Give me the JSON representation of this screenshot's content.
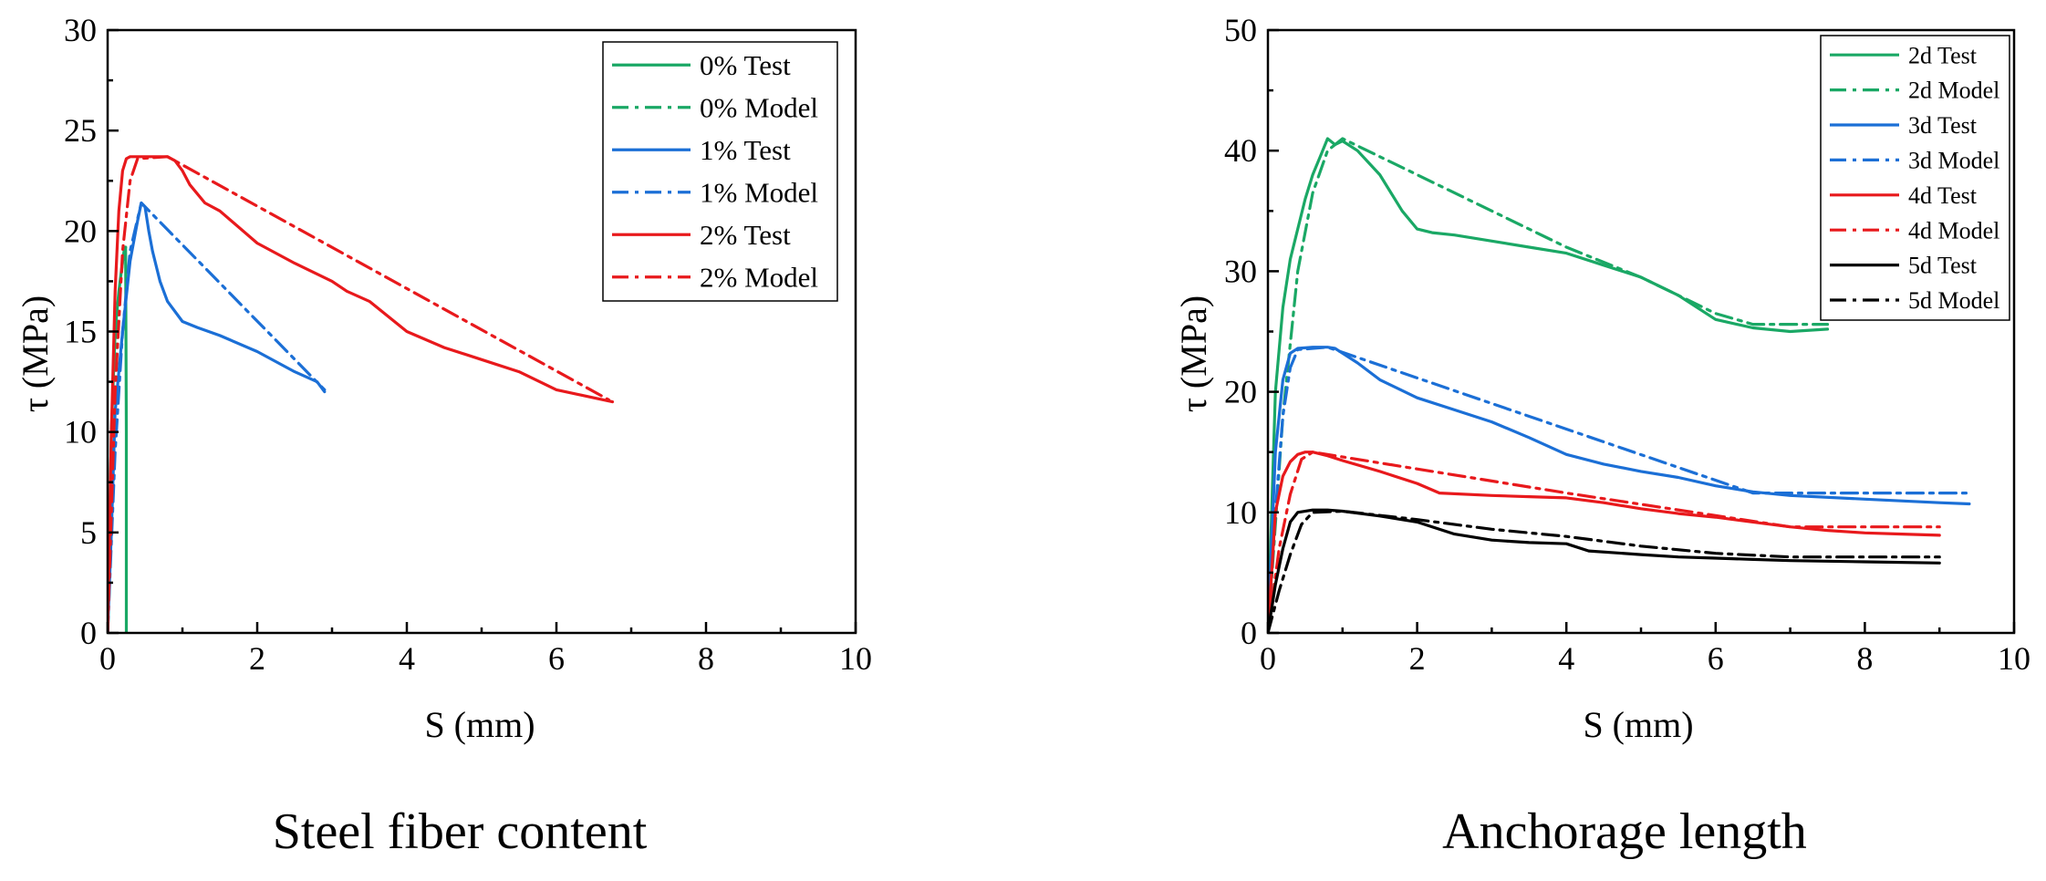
{
  "chart_data": [
    {
      "type": "line",
      "title": "Steel fiber content",
      "xlabel": "S (mm)",
      "ylabel": "τ (MPa)",
      "xlim": [
        0,
        10
      ],
      "ylim": [
        0,
        30
      ],
      "xticks": [
        0,
        2,
        4,
        6,
        8,
        10
      ],
      "yticks": [
        0,
        5,
        10,
        15,
        20,
        25,
        30
      ],
      "legend_position": "top-right",
      "series": [
        {
          "name": "0% Test",
          "color": "#1aa865",
          "style": "solid",
          "x": [
            0,
            0.05,
            0.1,
            0.15,
            0.2,
            0.22,
            0.24,
            0.25,
            0.25
          ],
          "y": [
            0,
            10,
            15,
            17,
            18.5,
            19,
            19.2,
            10,
            0
          ]
        },
        {
          "name": "0% Model",
          "color": "#1aa865",
          "style": "dashdot",
          "x": [
            0,
            0.05,
            0.1,
            0.15,
            0.2,
            0.24
          ],
          "y": [
            0,
            8,
            13,
            16.5,
            18.5,
            19.2
          ]
        },
        {
          "name": "1% Test",
          "color": "#1b6fd6",
          "style": "solid",
          "x": [
            0,
            0.05,
            0.1,
            0.2,
            0.3,
            0.4,
            0.45,
            0.5,
            0.55,
            0.6,
            0.7,
            0.8,
            1.0,
            1.2,
            1.5,
            2.0,
            2.5,
            2.8,
            2.9
          ],
          "y": [
            0,
            5,
            11,
            15,
            18.5,
            20.5,
            21.4,
            21.2,
            20,
            19,
            17.5,
            16.5,
            15.5,
            15.2,
            14.8,
            14,
            13,
            12.5,
            12
          ]
        },
        {
          "name": "1% Model",
          "color": "#1b6fd6",
          "style": "dashdot",
          "x": [
            0,
            0.1,
            0.2,
            0.3,
            0.45,
            2.9
          ],
          "y": [
            0,
            9,
            15,
            19,
            21.4,
            12.1
          ]
        },
        {
          "name": "2% Test",
          "color": "#e8191c",
          "style": "solid",
          "x": [
            0,
            0.05,
            0.1,
            0.15,
            0.2,
            0.25,
            0.3,
            0.4,
            0.6,
            0.8,
            0.9,
            1.0,
            1.1,
            1.3,
            1.5,
            2.0,
            2.5,
            3.0,
            3.2,
            3.5,
            4.0,
            4.5,
            5.0,
            5.5,
            6.0,
            6.5,
            6.75
          ],
          "y": [
            0,
            10,
            17,
            21,
            23,
            23.6,
            23.7,
            23.7,
            23.7,
            23.7,
            23.5,
            23,
            22.3,
            21.4,
            21,
            19.4,
            18.4,
            17.5,
            17,
            16.5,
            15,
            14.2,
            13.6,
            13,
            12.1,
            11.7,
            11.5
          ]
        },
        {
          "name": "2% Model",
          "color": "#e8191c",
          "style": "dashdot",
          "x": [
            0,
            0.1,
            0.2,
            0.3,
            0.4,
            0.8,
            6.7
          ],
          "y": [
            0,
            12,
            19,
            22.5,
            23.6,
            23.7,
            11.6
          ]
        }
      ]
    },
    {
      "type": "line",
      "title": "Anchorage length",
      "xlabel": "S (mm)",
      "ylabel": "τ (MPa)",
      "xlim": [
        0,
        10
      ],
      "ylim": [
        0,
        50
      ],
      "xticks": [
        0,
        2,
        4,
        6,
        8,
        10
      ],
      "yticks": [
        0,
        10,
        20,
        30,
        40,
        50
      ],
      "legend_position": "top-right",
      "series": [
        {
          "name": "2d Test",
          "color": "#1aa865",
          "style": "solid",
          "x": [
            0,
            0.1,
            0.2,
            0.3,
            0.4,
            0.5,
            0.6,
            0.7,
            0.8,
            0.9,
            1.0,
            1.2,
            1.5,
            1.8,
            2.0,
            2.2,
            2.5,
            3.0,
            3.5,
            4.0,
            4.5,
            5.0,
            5.5,
            6.0,
            6.5,
            7.0,
            7.5
          ],
          "y": [
            0,
            20,
            27,
            31,
            33.5,
            36,
            38,
            39.5,
            41,
            40.5,
            40.8,
            40,
            38,
            35,
            33.5,
            33.2,
            33,
            32.5,
            32,
            31.5,
            30.5,
            29.5,
            28,
            26,
            25.3,
            25,
            25.2
          ]
        },
        {
          "name": "2d Model",
          "color": "#1aa865",
          "style": "dashdot",
          "x": [
            0,
            0.2,
            0.4,
            0.6,
            0.8,
            1.0,
            2.0,
            3.0,
            4.0,
            5.0,
            6.0,
            6.5,
            7.5
          ],
          "y": [
            0,
            18,
            30,
            36.5,
            40,
            41,
            38,
            35,
            32,
            29.5,
            26.5,
            25.6,
            25.6
          ]
        },
        {
          "name": "3d Test",
          "color": "#1b6fd6",
          "style": "solid",
          "x": [
            0,
            0.1,
            0.2,
            0.3,
            0.4,
            0.6,
            0.8,
            0.9,
            1.0,
            1.2,
            1.5,
            2.0,
            2.5,
            3.0,
            3.5,
            4.0,
            4.5,
            5.0,
            5.5,
            6.0,
            6.5,
            7.0,
            8.0,
            9.0,
            9.4
          ],
          "y": [
            0,
            15,
            21,
            23.2,
            23.6,
            23.7,
            23.7,
            23.6,
            23.2,
            22.4,
            21,
            19.5,
            18.5,
            17.5,
            16.2,
            14.8,
            14,
            13.4,
            12.9,
            12.2,
            11.7,
            11.4,
            11.1,
            10.8,
            10.7
          ]
        },
        {
          "name": "3d Model",
          "color": "#1b6fd6",
          "style": "dashdot",
          "x": [
            0,
            0.1,
            0.2,
            0.3,
            0.4,
            0.8,
            6.5,
            9.4
          ],
          "y": [
            0,
            10,
            18,
            22,
            23.5,
            23.7,
            11.6,
            11.6
          ]
        },
        {
          "name": "4d Test",
          "color": "#e8191c",
          "style": "solid",
          "x": [
            0,
            0.1,
            0.2,
            0.3,
            0.4,
            0.5,
            0.6,
            0.8,
            1.0,
            1.5,
            2.0,
            2.3,
            3.0,
            3.5,
            4.0,
            4.5,
            5.0,
            5.5,
            6.0,
            6.5,
            7.0,
            7.5,
            8.0,
            8.5,
            9.0
          ],
          "y": [
            0,
            10,
            13,
            14.2,
            14.8,
            15,
            15,
            14.7,
            14.3,
            13.4,
            12.4,
            11.6,
            11.4,
            11.3,
            11.2,
            10.8,
            10.3,
            9.9,
            9.6,
            9.2,
            8.8,
            8.5,
            8.3,
            8.2,
            8.1
          ]
        },
        {
          "name": "4d Model",
          "color": "#e8191c",
          "style": "dashdot",
          "x": [
            0,
            0.15,
            0.3,
            0.45,
            0.6,
            4.0,
            7.0,
            9.0
          ],
          "y": [
            0,
            7,
            11.5,
            14.4,
            15,
            11.6,
            8.8,
            8.8
          ]
        },
        {
          "name": "5d Test",
          "color": "#000000",
          "style": "solid",
          "x": [
            0,
            0.1,
            0.2,
            0.3,
            0.4,
            0.6,
            0.8,
            1.0,
            1.5,
            2.0,
            2.5,
            3.0,
            3.5,
            4.0,
            4.3,
            5.0,
            5.5,
            6.0,
            6.5,
            7.0,
            8.0,
            9.0
          ],
          "y": [
            0,
            4,
            7,
            9.2,
            10,
            10.2,
            10.2,
            10.1,
            9.7,
            9.2,
            8.2,
            7.7,
            7.5,
            7.4,
            6.8,
            6.5,
            6.3,
            6.2,
            6.1,
            6.0,
            5.9,
            5.8
          ]
        },
        {
          "name": "5d Model",
          "color": "#000000",
          "style": "dashdot",
          "x": [
            0,
            0.15,
            0.3,
            0.45,
            0.6,
            1.0,
            2.0,
            3.0,
            4.0,
            5.0,
            6.0,
            7.0,
            9.0
          ],
          "y": [
            0,
            3.5,
            6.5,
            9,
            10,
            10.1,
            9.4,
            8.6,
            8.0,
            7.2,
            6.6,
            6.3,
            6.3
          ]
        }
      ]
    }
  ]
}
